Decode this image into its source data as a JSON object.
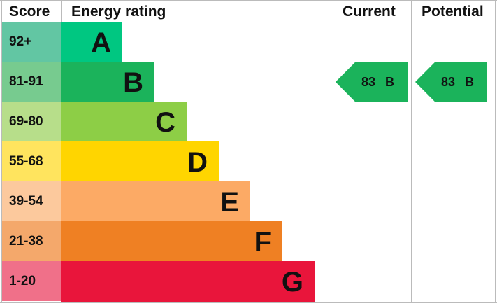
{
  "chart_data": {
    "type": "table",
    "headers": {
      "score": "Score",
      "rating": "Energy rating",
      "current": "Current",
      "potential": "Potential"
    },
    "bands": [
      {
        "score": "92+",
        "letter": "A",
        "color": "#00c781",
        "score_color": "#62c6a3"
      },
      {
        "score": "81-91",
        "letter": "B",
        "color": "#1bb35b",
        "score_color": "#77cb8f"
      },
      {
        "score": "69-80",
        "letter": "C",
        "color": "#8dce46",
        "score_color": "#b7de8a"
      },
      {
        "score": "55-68",
        "letter": "D",
        "color": "#ffd500",
        "score_color": "#ffe45e"
      },
      {
        "score": "39-54",
        "letter": "E",
        "color": "#fcaa65",
        "score_color": "#fcc99d"
      },
      {
        "score": "21-38",
        "letter": "F",
        "color": "#ef8023",
        "score_color": "#f4a86b"
      },
      {
        "score": "1-20",
        "letter": "G",
        "color": "#e9153b",
        "score_color": "#f07089"
      }
    ],
    "current": {
      "value": "83",
      "letter": "B",
      "color": "#1bb35b"
    },
    "potential": {
      "value": "83",
      "letter": "B",
      "color": "#1bb35b"
    }
  }
}
